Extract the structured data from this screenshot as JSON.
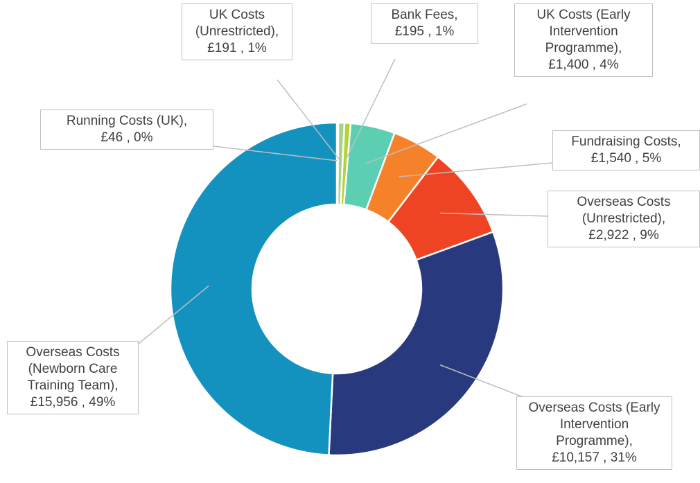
{
  "chart_data": {
    "type": "donut",
    "categories": [
      "Running Costs (UK)",
      "UK Costs (Unrestricted)",
      "Bank Fees",
      "UK Costs (Early Intervention Programme)",
      "Fundraising Costs",
      "Overseas Costs (Unrestricted)",
      "Overseas Costs (Early Intervention Programme)",
      "Overseas Costs (Newborn Care Training Team)"
    ],
    "values": [
      46,
      191,
      195,
      1400,
      1540,
      2922,
      10157,
      15956
    ],
    "value_labels": [
      "£46",
      "£191",
      "£195",
      "£1,400",
      "£1,540",
      "£2,922",
      "£10,157",
      "£15,956"
    ],
    "percent_labels": [
      "0%",
      "1%",
      "1%",
      "4%",
      "5%",
      "9%",
      "31%",
      "49%"
    ],
    "colors": [
      "#5b9bd5",
      "#a9d18e",
      "#b5d334",
      "#5ccfb2",
      "#f5822a",
      "#ef4423",
      "#283a7d",
      "#1492bf"
    ]
  }
}
